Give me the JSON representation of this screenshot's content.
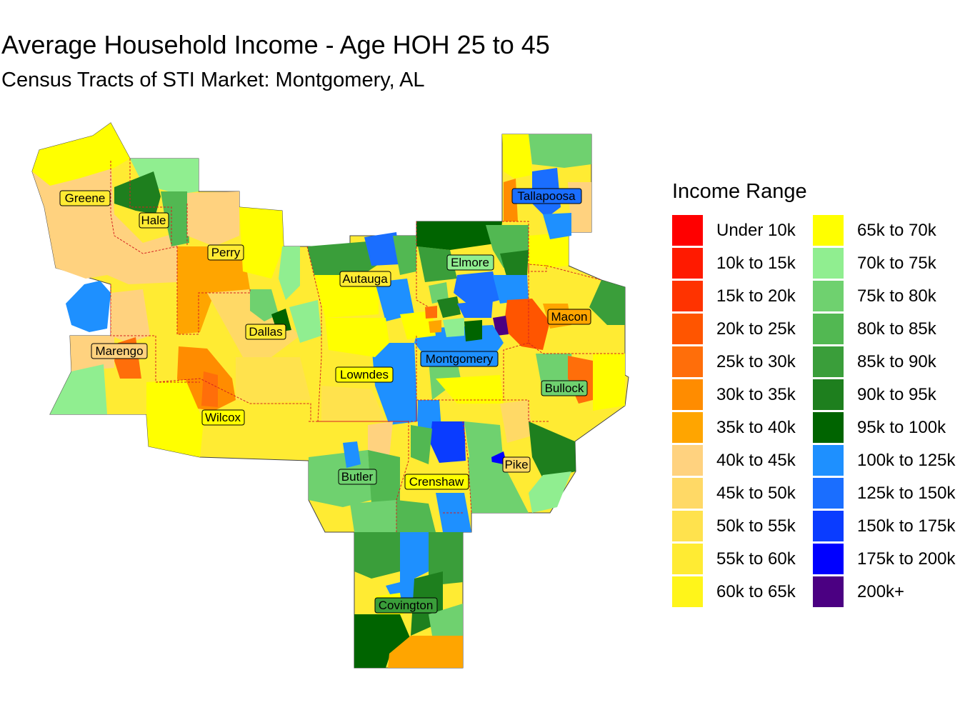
{
  "title": "Average Household Income - Age HOH 25 to 45",
  "subtitle": "Census Tracts of STI Market: Montgomery, AL",
  "legend": {
    "title": "Income Range",
    "items": [
      {
        "label": "Under 10k",
        "color": "#FF0000"
      },
      {
        "label": "10k to 15k",
        "color": "#FF1A00"
      },
      {
        "label": "15k to 20k",
        "color": "#FF3300"
      },
      {
        "label": "20k to 25k",
        "color": "#FF5500"
      },
      {
        "label": "25k to 30k",
        "color": "#FF6E0A"
      },
      {
        "label": "30k to 35k",
        "color": "#FF8C00"
      },
      {
        "label": "35k to 40k",
        "color": "#FFA500"
      },
      {
        "label": "40k to 45k",
        "color": "#FFD27F"
      },
      {
        "label": "45k to 50k",
        "color": "#FFD966"
      },
      {
        "label": "50k to 55k",
        "color": "#FFE24D"
      },
      {
        "label": "55k to 60k",
        "color": "#FFEB33"
      },
      {
        "label": "60k to 65k",
        "color": "#FFF51A"
      },
      {
        "label": "65k to 70k",
        "color": "#FFFF00"
      },
      {
        "label": "70k to 75k",
        "color": "#90EE90"
      },
      {
        "label": "75k to 80k",
        "color": "#6FD16F"
      },
      {
        "label": "80k to 85k",
        "color": "#52B852"
      },
      {
        "label": "85k to 90k",
        "color": "#3A9E3A"
      },
      {
        "label": "90k to 95k",
        "color": "#1E7F1E"
      },
      {
        "label": "95k to 100k",
        "color": "#006400"
      },
      {
        "label": "100k to 125k",
        "color": "#1E90FF"
      },
      {
        "label": "125k to 150k",
        "color": "#1A6EFF"
      },
      {
        "label": "150k to 175k",
        "color": "#0A3CFF"
      },
      {
        "label": "175k to 200k",
        "color": "#0000FF"
      },
      {
        "label": "200k+",
        "color": "#4B0082"
      }
    ]
  },
  "counties": [
    {
      "name": "Greene"
    },
    {
      "name": "Hale"
    },
    {
      "name": "Perry"
    },
    {
      "name": "Autauga"
    },
    {
      "name": "Elmore"
    },
    {
      "name": "Tallapoosa"
    },
    {
      "name": "Macon"
    },
    {
      "name": "Dallas"
    },
    {
      "name": "Marengo"
    },
    {
      "name": "Montgomery"
    },
    {
      "name": "Lowndes"
    },
    {
      "name": "Bullock"
    },
    {
      "name": "Wilcox"
    },
    {
      "name": "Pike"
    },
    {
      "name": "Butler"
    },
    {
      "name": "Crenshaw"
    },
    {
      "name": "Covington"
    }
  ]
}
